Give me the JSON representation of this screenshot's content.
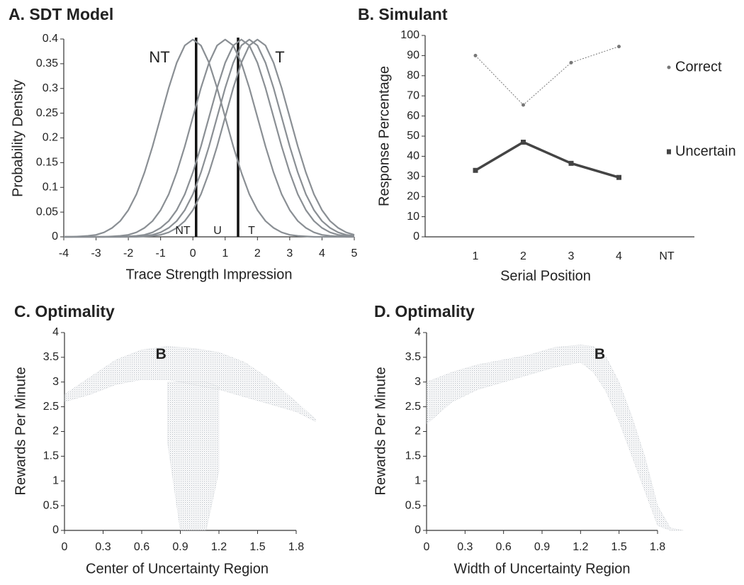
{
  "chart_data": [
    {
      "type": "line",
      "title": "A. SDT Model",
      "x_label": "Trace Strength Impression",
      "y_label": "Probability Density",
      "x": [
        -4,
        -3.75,
        -3.5,
        -3.25,
        -3,
        -2.75,
        -2.5,
        -2.25,
        -2,
        -1.75,
        -1.5,
        -1.25,
        -1,
        -0.75,
        -0.5,
        -0.25,
        0,
        0.25,
        0.5,
        0.75,
        1,
        1.25,
        1.5,
        1.75,
        2,
        2.25,
        2.5,
        2.75,
        3,
        3.25,
        3.5,
        3.75,
        4,
        4.25,
        4.5,
        4.75,
        5
      ],
      "series": [
        {
          "color": "#8a8f94",
          "values": [
            0,
            0,
            0.001,
            0.002,
            0.004,
            0.009,
            0.018,
            0.032,
            0.054,
            0.086,
            0.13,
            0.183,
            0.242,
            0.301,
            0.352,
            0.387,
            0.399,
            0.387,
            0.352,
            0.301,
            0.242,
            0.183,
            0.13,
            0.086,
            0.054,
            0.032,
            0.018,
            0.009,
            0.004,
            0.002,
            0.001,
            0,
            0,
            0,
            0,
            0,
            0
          ]
        },
        {
          "color": "#8a8f94",
          "values": [
            0,
            0,
            0,
            0,
            0,
            0,
            0.001,
            0.002,
            0.004,
            0.009,
            0.018,
            0.032,
            0.054,
            0.086,
            0.13,
            0.183,
            0.242,
            0.301,
            0.352,
            0.387,
            0.399,
            0.387,
            0.352,
            0.301,
            0.242,
            0.183,
            0.13,
            0.086,
            0.054,
            0.032,
            0.018,
            0.009,
            0.004,
            0.002,
            0.001,
            0,
            0
          ]
        },
        {
          "color": "#8a8f94",
          "values": [
            0,
            0,
            0,
            0,
            0,
            0,
            0,
            0,
            0.001,
            0.002,
            0.004,
            0.009,
            0.018,
            0.032,
            0.054,
            0.086,
            0.13,
            0.183,
            0.242,
            0.301,
            0.352,
            0.387,
            0.399,
            0.387,
            0.352,
            0.301,
            0.242,
            0.183,
            0.13,
            0.086,
            0.054,
            0.032,
            0.018,
            0.009,
            0.004,
            0.002,
            0.001
          ]
        },
        {
          "color": "#8a8f94",
          "values": [
            0,
            0,
            0,
            0,
            0,
            0,
            0,
            0,
            0,
            0.001,
            0.002,
            0.004,
            0.009,
            0.018,
            0.032,
            0.054,
            0.086,
            0.13,
            0.183,
            0.242,
            0.301,
            0.352,
            0.387,
            0.399,
            0.387,
            0.352,
            0.301,
            0.242,
            0.183,
            0.13,
            0.086,
            0.054,
            0.032,
            0.018,
            0.009,
            0.004,
            0.002
          ]
        },
        {
          "color": "#8a8f94",
          "values": [
            0,
            0,
            0,
            0,
            0,
            0,
            0,
            0,
            0,
            0,
            0.001,
            0.002,
            0.004,
            0.009,
            0.018,
            0.032,
            0.054,
            0.086,
            0.13,
            0.183,
            0.242,
            0.301,
            0.352,
            0.387,
            0.399,
            0.387,
            0.352,
            0.301,
            0.242,
            0.183,
            0.13,
            0.086,
            0.054,
            0.032,
            0.018,
            0.009,
            0.004
          ]
        }
      ],
      "criteria": [
        0.1,
        1.4
      ],
      "criteria_color": "#111",
      "annotations": [
        "NT",
        "T",
        "NT",
        "U",
        "T"
      ],
      "xlim": [
        -4,
        5
      ],
      "ylim": [
        0,
        0.4
      ],
      "xticks": [
        -4,
        -3,
        -2,
        -1,
        0,
        1,
        2,
        3,
        4,
        5
      ],
      "yticks": [
        0,
        0.05,
        0.1,
        0.15,
        0.2,
        0.25,
        0.3,
        0.35,
        0.4
      ]
    },
    {
      "type": "line",
      "title": "B. Simulant",
      "x_label": "Serial Position",
      "y_label": "Response Percentage",
      "categories": [
        "1",
        "2",
        "3",
        "4",
        "NT"
      ],
      "series": [
        {
          "name": "Correct",
          "color": "#777",
          "line_style": "dotted",
          "marker": "circle",
          "values": [
            90,
            65.5,
            86.5,
            94.5,
            null
          ]
        },
        {
          "name": "Uncertain",
          "color": "#444",
          "line_style": "solid",
          "marker": "square",
          "values": [
            33,
            47,
            36.5,
            29.5,
            null
          ]
        }
      ],
      "legend": "right",
      "ylim": [
        0,
        100
      ],
      "yticks": [
        0,
        10,
        20,
        30,
        40,
        50,
        60,
        70,
        80,
        90,
        100
      ]
    },
    {
      "type": "band",
      "title": "C. Optimality",
      "x_label": "Center of Uncertainty Region",
      "y_label": "Rewards Per Minute",
      "color": "#b9bfc5",
      "annotation": "B",
      "bands": [
        {
          "x": [
            0,
            0.2,
            0.4,
            0.6,
            0.8,
            1.0,
            1.2,
            1.4,
            1.6,
            1.8,
            1.95
          ],
          "upper": [
            2.75,
            3.1,
            3.45,
            3.65,
            3.72,
            3.68,
            3.6,
            3.4,
            3.05,
            2.6,
            2.25
          ],
          "lower": [
            2.6,
            2.75,
            2.95,
            3.05,
            3.05,
            2.95,
            2.85,
            2.7,
            2.55,
            2.4,
            2.2
          ]
        },
        {
          "x": [
            0.8,
            0.9,
            1.0,
            1.1,
            1.2
          ],
          "upper": [
            3.0,
            3.0,
            3.0,
            3.0,
            2.9
          ],
          "lower": [
            1.8,
            0,
            0,
            0,
            1.2
          ]
        }
      ],
      "xlim": [
        0,
        1.8
      ],
      "ylim": [
        0,
        4
      ],
      "xticks": [
        0,
        0.3,
        0.6,
        0.9,
        1.2,
        1.5,
        1.8
      ],
      "yticks": [
        0,
        0.5,
        1,
        1.5,
        2,
        2.5,
        3,
        3.5,
        4
      ]
    },
    {
      "type": "band",
      "title": "D. Optimality",
      "x_label": "Width of Uncertainty Region",
      "y_label": "Rewards Per Minute",
      "color": "#b9bfc5",
      "annotation": "B",
      "bands": [
        {
          "x": [
            0,
            0.2,
            0.4,
            0.6,
            0.8,
            1.0,
            1.2,
            1.3,
            1.4,
            1.5,
            1.6,
            1.7,
            1.8,
            1.9,
            2.0
          ],
          "upper": [
            3.0,
            3.2,
            3.35,
            3.45,
            3.55,
            3.7,
            3.75,
            3.72,
            3.5,
            3.0,
            2.3,
            1.5,
            0.5,
            0.05,
            0
          ],
          "lower": [
            2.15,
            2.6,
            2.85,
            3.0,
            3.15,
            3.3,
            3.4,
            3.2,
            2.8,
            2.2,
            1.5,
            0.8,
            0.1,
            0,
            0
          ]
        }
      ],
      "xlim": [
        0,
        1.8
      ],
      "ylim": [
        0,
        4
      ],
      "xticks": [
        0,
        0.3,
        0.6,
        0.9,
        1.2,
        1.5,
        1.8
      ],
      "yticks": [
        0,
        0.5,
        1,
        1.5,
        2,
        2.5,
        3,
        3.5,
        4
      ]
    }
  ]
}
